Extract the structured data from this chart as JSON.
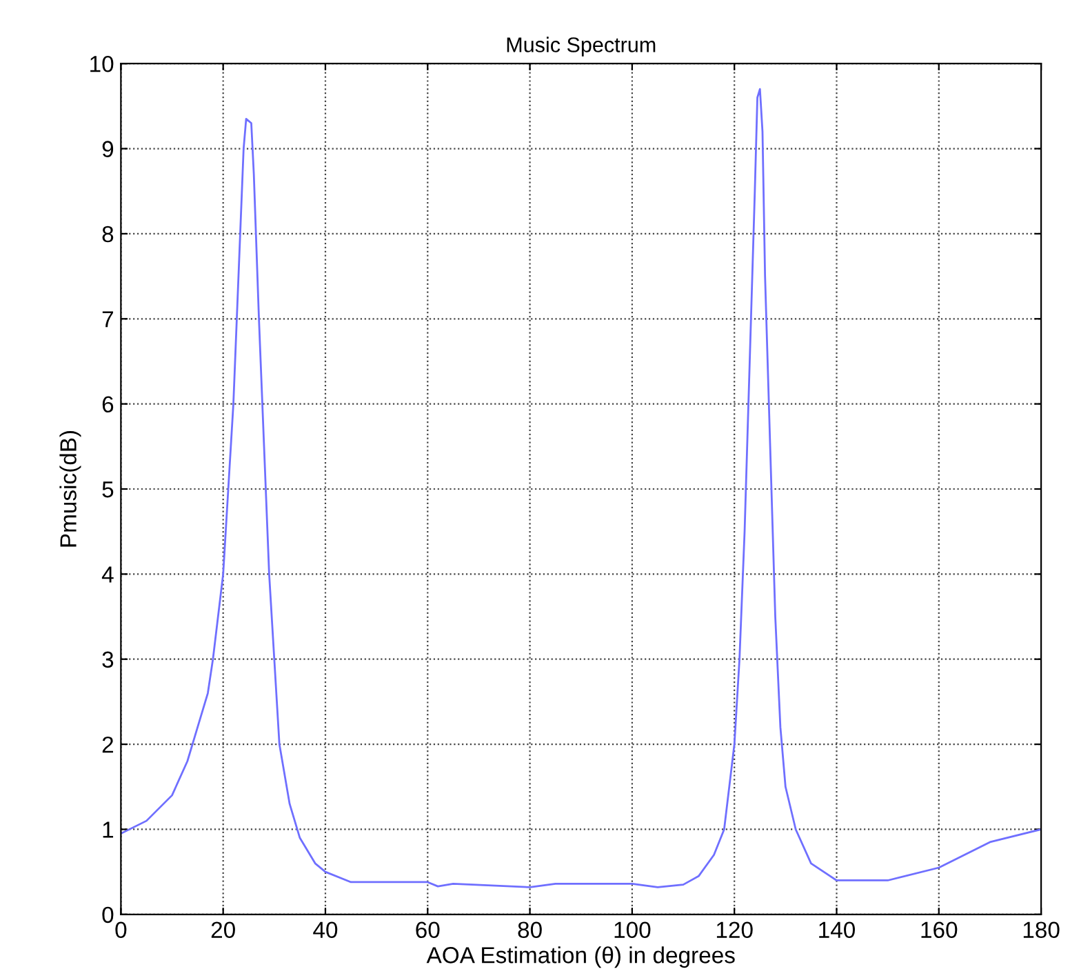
{
  "chart_data": {
    "type": "line",
    "title": "Music Spectrum",
    "xlabel": "AOA Estimation (θ) in degrees",
    "ylabel": "Pmusic(dB)",
    "xlim": [
      0,
      180
    ],
    "ylim": [
      0,
      10
    ],
    "xticks": [
      0,
      20,
      40,
      60,
      80,
      100,
      120,
      140,
      160,
      180
    ],
    "yticks": [
      0,
      1,
      2,
      3,
      4,
      5,
      6,
      7,
      8,
      9,
      10
    ],
    "grid": true,
    "marker": "none",
    "line_style": "solid",
    "series": [
      {
        "color": "#6f6fff",
        "x": [
          0,
          5,
          10,
          13,
          15,
          17,
          18,
          20,
          21,
          22,
          23,
          24,
          24.5,
          25.5,
          26,
          27,
          28,
          29,
          30,
          31,
          33,
          35,
          38,
          40,
          45,
          60,
          62,
          65,
          80,
          85,
          100,
          105,
          110,
          113,
          116,
          118,
          120,
          121,
          122,
          123,
          124,
          124.5,
          125,
          125.5,
          126,
          127,
          128,
          129,
          130,
          132,
          135,
          140,
          150,
          160,
          170,
          180
        ],
        "values": [
          0.95,
          1.1,
          1.4,
          1.8,
          2.2,
          2.6,
          3.0,
          4.0,
          5.0,
          6.0,
          7.5,
          9.0,
          9.35,
          9.3,
          8.7,
          7.0,
          5.5,
          4.0,
          3.0,
          2.0,
          1.3,
          0.9,
          0.6,
          0.5,
          0.38,
          0.38,
          0.33,
          0.36,
          0.32,
          0.36,
          0.36,
          0.32,
          0.35,
          0.45,
          0.7,
          1.0,
          2.0,
          3.0,
          4.5,
          6.5,
          8.5,
          9.6,
          9.7,
          9.2,
          7.5,
          5.5,
          3.5,
          2.2,
          1.5,
          1.0,
          0.6,
          0.4,
          0.4,
          0.55,
          0.85,
          1.0
        ]
      }
    ]
  }
}
